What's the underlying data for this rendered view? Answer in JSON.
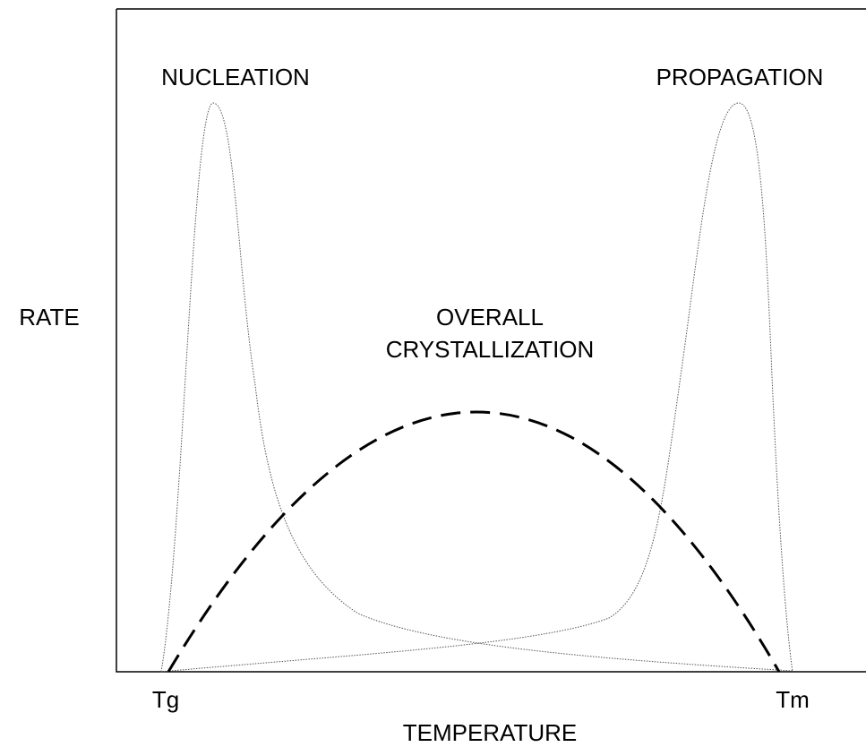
{
  "y_axis_label": "RATE",
  "x_axis_label": "TEMPERATURE",
  "x_start_label": "Tg",
  "x_end_label": "Tm",
  "curves": [
    {
      "label": "NUCLEATION"
    },
    {
      "label": "PROPAGATION"
    },
    {
      "label_lines": [
        "OVERALL",
        "CRYSTALLIZATION"
      ]
    }
  ]
}
